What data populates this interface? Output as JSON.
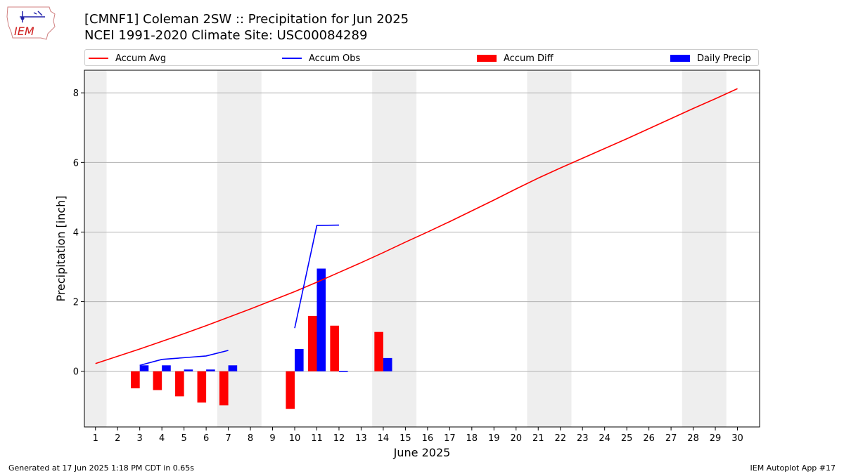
{
  "header": {
    "title_line1": "[CMNF1] Coleman 2SW :: Precipitation for Jun 2025",
    "title_line2": "NCEI 1991-2020 Climate Site: USC00084289"
  },
  "logo": {
    "text": "IEM"
  },
  "footer": {
    "left": "Generated at 17 Jun 2025 1:18 PM CDT in 0.65s",
    "right": "IEM Autoplot App #17"
  },
  "colors": {
    "avg": "#ff0000",
    "obs": "#0000ff",
    "diff": "#ff0000",
    "daily": "#0000ff",
    "weekend_band": "#eeeeee",
    "grid": "#b0b0b0"
  },
  "chart_data": {
    "type": "bar",
    "xlabel": "June 2025",
    "ylabel": "Precipitation [inch]",
    "xlim": [
      0.5,
      31
    ],
    "ylim": [
      -1.6,
      8.65
    ],
    "yticks": [
      0,
      2,
      4,
      6,
      8
    ],
    "xticks": [
      1,
      2,
      3,
      4,
      5,
      6,
      7,
      8,
      9,
      10,
      11,
      12,
      13,
      14,
      15,
      16,
      17,
      18,
      19,
      20,
      21,
      22,
      23,
      24,
      25,
      26,
      27,
      28,
      29,
      30
    ],
    "grid": "horizontal",
    "legend_position": "top",
    "legend": [
      "Accum Avg",
      "Accum Obs",
      "Accum Diff",
      "Daily Precip"
    ],
    "weekend_bands": [
      [
        0.5,
        1.5
      ],
      [
        6.5,
        8.5
      ],
      [
        13.5,
        15.5
      ],
      [
        20.5,
        22.5
      ],
      [
        27.5,
        29.5
      ]
    ],
    "accum_avg": {
      "name": "Accum Avg",
      "days": [
        1,
        2,
        3,
        4,
        5,
        6,
        7,
        8,
        9,
        10,
        11,
        12,
        13,
        14,
        15,
        16,
        17,
        18,
        19,
        20,
        21,
        22,
        23,
        24,
        25,
        26,
        27,
        28,
        29,
        30
      ],
      "values": [
        0.22,
        0.43,
        0.64,
        0.86,
        1.08,
        1.31,
        1.55,
        1.79,
        2.04,
        2.29,
        2.56,
        2.84,
        3.12,
        3.41,
        3.71,
        4.0,
        4.3,
        4.61,
        4.92,
        5.24,
        5.55,
        5.84,
        6.12,
        6.4,
        6.68,
        6.97,
        7.26,
        7.55,
        7.83,
        8.12
      ]
    },
    "accum_obs": {
      "name": "Accum Obs",
      "segments": [
        {
          "days": [
            3,
            4,
            5,
            6,
            7
          ],
          "values": [
            0.17,
            0.34,
            0.39,
            0.44,
            0.6
          ]
        },
        {
          "days": [
            10,
            11,
            12
          ],
          "values": [
            1.24,
            4.19,
            4.2
          ]
        }
      ]
    },
    "accum_diff": {
      "name": "Accum Diff",
      "days": [
        3,
        4,
        5,
        6,
        7,
        10,
        11,
        12,
        14
      ],
      "values": [
        -0.49,
        -0.54,
        -0.72,
        -0.9,
        -0.98,
        -1.08,
        1.59,
        1.31,
        1.13
      ]
    },
    "daily_precip": {
      "name": "Daily Precip",
      "days": [
        3,
        4,
        5,
        6,
        7,
        10,
        11,
        12,
        14
      ],
      "values": [
        0.17,
        0.17,
        0.05,
        0.05,
        0.17,
        0.64,
        2.95,
        0.01,
        0.38
      ]
    }
  }
}
